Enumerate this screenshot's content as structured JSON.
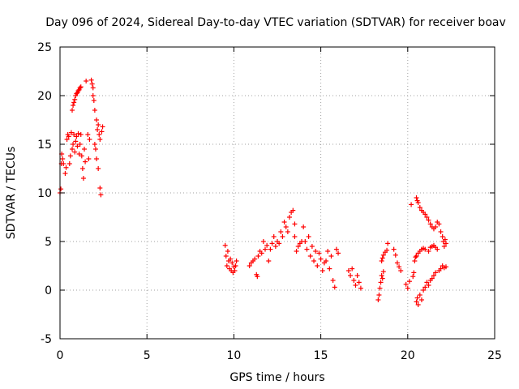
{
  "chart_data": {
    "type": "scatter",
    "title": "Day 096 of 2024, Sidereal Day-to-day VTEC variation (SDTVAR) for receiver boav",
    "xlabel": "GPS time / hours",
    "ylabel": "SDTVAR / TECUs",
    "xlim": [
      0,
      25
    ],
    "ylim": [
      -5,
      25
    ],
    "xticks": [
      "0",
      "5",
      "10",
      "15",
      "20",
      "25"
    ],
    "yticks": [
      "-5",
      "0",
      "5",
      "10",
      "15",
      "20",
      "25"
    ],
    "grid": true,
    "marker": "+",
    "color": "#ff0000",
    "series": [
      {
        "name": "SDTVAR",
        "points": [
          [
            0.0,
            10.0
          ],
          [
            0.05,
            10.4
          ],
          [
            0.08,
            13.0
          ],
          [
            0.1,
            14.0
          ],
          [
            0.15,
            13.5
          ],
          [
            0.2,
            13.0
          ],
          [
            0.3,
            12.0
          ],
          [
            0.35,
            12.6
          ],
          [
            0.4,
            15.5
          ],
          [
            0.45,
            16.0
          ],
          [
            0.5,
            15.8
          ],
          [
            0.55,
            13.0
          ],
          [
            0.6,
            13.8
          ],
          [
            0.65,
            16.2
          ],
          [
            0.7,
            14.5
          ],
          [
            0.75,
            15.0
          ],
          [
            0.8,
            16.0
          ],
          [
            0.85,
            14.2
          ],
          [
            0.9,
            15.3
          ],
          [
            0.95,
            15.8
          ],
          [
            1.0,
            14.8
          ],
          [
            1.05,
            16.1
          ],
          [
            1.1,
            14.0
          ],
          [
            1.15,
            15.0
          ],
          [
            1.2,
            16.0
          ],
          [
            1.25,
            13.8
          ],
          [
            1.3,
            12.5
          ],
          [
            1.35,
            11.5
          ],
          [
            1.4,
            14.5
          ],
          [
            1.45,
            13.2
          ],
          [
            0.7,
            18.5
          ],
          [
            0.75,
            19.0
          ],
          [
            0.8,
            19.3
          ],
          [
            0.85,
            19.6
          ],
          [
            0.9,
            20.0
          ],
          [
            0.95,
            20.2
          ],
          [
            1.0,
            20.3
          ],
          [
            1.05,
            20.5
          ],
          [
            1.1,
            20.6
          ],
          [
            1.15,
            20.8
          ],
          [
            1.2,
            20.9
          ],
          [
            1.5,
            21.5
          ],
          [
            1.6,
            16.0
          ],
          [
            1.65,
            13.5
          ],
          [
            1.7,
            15.5
          ],
          [
            1.8,
            21.6
          ],
          [
            1.85,
            21.2
          ],
          [
            1.9,
            20.8
          ],
          [
            1.9,
            20.0
          ],
          [
            1.95,
            19.5
          ],
          [
            2.0,
            18.5
          ],
          [
            2.0,
            15.0
          ],
          [
            2.05,
            14.5
          ],
          [
            2.1,
            17.5
          ],
          [
            2.1,
            13.5
          ],
          [
            2.15,
            16.5
          ],
          [
            2.2,
            12.5
          ],
          [
            2.2,
            17.0
          ],
          [
            2.25,
            16.0
          ],
          [
            2.3,
            10.5
          ],
          [
            2.3,
            15.5
          ],
          [
            2.35,
            9.8
          ],
          [
            2.4,
            16.3
          ],
          [
            2.45,
            16.8
          ],
          [
            9.5,
            4.6
          ],
          [
            9.55,
            3.5
          ],
          [
            9.6,
            2.5
          ],
          [
            9.65,
            4.0
          ],
          [
            9.7,
            3.0
          ],
          [
            9.75,
            2.2
          ],
          [
            9.8,
            3.2
          ],
          [
            9.85,
            2.0
          ],
          [
            9.9,
            2.8
          ],
          [
            9.95,
            1.8
          ],
          [
            10.0,
            2.4
          ],
          [
            10.05,
            2.0
          ],
          [
            10.1,
            2.5
          ],
          [
            10.15,
            3.0
          ],
          [
            10.9,
            2.5
          ],
          [
            11.0,
            2.8
          ],
          [
            11.1,
            3.0
          ],
          [
            11.2,
            3.2
          ],
          [
            11.3,
            1.6
          ],
          [
            11.35,
            1.4
          ],
          [
            11.4,
            3.5
          ],
          [
            11.5,
            4.0
          ],
          [
            11.6,
            3.8
          ],
          [
            11.7,
            5.0
          ],
          [
            11.8,
            4.2
          ],
          [
            11.9,
            4.6
          ],
          [
            12.0,
            3.0
          ],
          [
            12.1,
            4.2
          ],
          [
            12.2,
            4.8
          ],
          [
            12.3,
            5.5
          ],
          [
            12.4,
            4.5
          ],
          [
            12.5,
            5.0
          ],
          [
            12.6,
            4.8
          ],
          [
            12.7,
            6.0
          ],
          [
            12.8,
            5.5
          ],
          [
            12.9,
            7.0
          ],
          [
            13.0,
            6.5
          ],
          [
            13.1,
            6.0
          ],
          [
            13.2,
            7.5
          ],
          [
            13.3,
            8.0
          ],
          [
            13.4,
            8.2
          ],
          [
            13.5,
            6.8
          ],
          [
            13.5,
            5.5
          ],
          [
            13.6,
            4.0
          ],
          [
            13.7,
            4.5
          ],
          [
            13.8,
            4.8
          ],
          [
            13.9,
            5.0
          ],
          [
            14.0,
            6.5
          ],
          [
            14.1,
            5.0
          ],
          [
            14.2,
            4.2
          ],
          [
            14.3,
            5.5
          ],
          [
            14.4,
            3.5
          ],
          [
            14.5,
            4.5
          ],
          [
            14.6,
            3.0
          ],
          [
            14.7,
            4.0
          ],
          [
            14.8,
            2.5
          ],
          [
            14.9,
            3.8
          ],
          [
            15.0,
            3.2
          ],
          [
            15.1,
            2.0
          ],
          [
            15.2,
            2.8
          ],
          [
            15.3,
            3.0
          ],
          [
            15.4,
            4.0
          ],
          [
            15.5,
            2.2
          ],
          [
            15.6,
            3.5
          ],
          [
            15.7,
            1.0
          ],
          [
            15.8,
            0.3
          ],
          [
            15.9,
            4.2
          ],
          [
            16.0,
            3.8
          ],
          [
            16.6,
            2.0
          ],
          [
            16.7,
            1.5
          ],
          [
            16.8,
            2.2
          ],
          [
            16.9,
            1.0
          ],
          [
            17.0,
            0.5
          ],
          [
            17.1,
            1.5
          ],
          [
            17.2,
            0.8
          ],
          [
            17.3,
            0.2
          ],
          [
            18.3,
            -1.0
          ],
          [
            18.35,
            -0.5
          ],
          [
            18.4,
            0.2
          ],
          [
            18.45,
            0.8
          ],
          [
            18.5,
            1.5
          ],
          [
            18.55,
            1.2
          ],
          [
            18.6,
            1.9
          ],
          [
            18.5,
            3.0
          ],
          [
            18.55,
            3.3
          ],
          [
            18.6,
            3.6
          ],
          [
            18.7,
            3.9
          ],
          [
            18.8,
            4.1
          ],
          [
            18.85,
            4.8
          ],
          [
            19.2,
            4.2
          ],
          [
            19.3,
            3.6
          ],
          [
            19.4,
            2.8
          ],
          [
            19.5,
            2.4
          ],
          [
            19.6,
            2.0
          ],
          [
            19.9,
            0.6
          ],
          [
            20.0,
            0.2
          ],
          [
            20.1,
            0.9
          ],
          [
            20.2,
            8.8
          ],
          [
            20.3,
            1.4
          ],
          [
            20.35,
            1.8
          ],
          [
            20.4,
            3.0
          ],
          [
            20.45,
            3.4
          ],
          [
            20.5,
            -1.2
          ],
          [
            20.55,
            -0.8
          ],
          [
            20.6,
            -1.5
          ],
          [
            20.7,
            -0.5
          ],
          [
            20.8,
            -1.0
          ],
          [
            20.9,
            0.0
          ],
          [
            21.0,
            0.3
          ],
          [
            21.1,
            0.8
          ],
          [
            21.2,
            0.5
          ],
          [
            21.3,
            1.0
          ],
          [
            21.4,
            1.2
          ],
          [
            21.5,
            1.5
          ],
          [
            21.6,
            1.8
          ],
          [
            20.5,
            3.5
          ],
          [
            20.6,
            3.8
          ],
          [
            20.7,
            4.0
          ],
          [
            20.8,
            4.2
          ],
          [
            20.9,
            4.3
          ],
          [
            21.0,
            4.2
          ],
          [
            21.2,
            4.0
          ],
          [
            21.3,
            4.4
          ],
          [
            21.4,
            4.5
          ],
          [
            21.5,
            4.6
          ],
          [
            21.6,
            4.4
          ],
          [
            21.7,
            4.2
          ],
          [
            20.5,
            9.5
          ],
          [
            20.55,
            9.2
          ],
          [
            20.6,
            9.0
          ],
          [
            20.7,
            8.5
          ],
          [
            20.8,
            8.2
          ],
          [
            20.9,
            8.0
          ],
          [
            21.0,
            7.8
          ],
          [
            21.1,
            7.5
          ],
          [
            21.2,
            7.2
          ],
          [
            21.3,
            6.8
          ],
          [
            21.4,
            6.5
          ],
          [
            21.5,
            6.3
          ],
          [
            21.6,
            6.5
          ],
          [
            21.7,
            7.0
          ],
          [
            21.8,
            6.8
          ],
          [
            21.9,
            6.0
          ],
          [
            22.0,
            5.5
          ],
          [
            22.05,
            5.0
          ],
          [
            22.1,
            4.5
          ],
          [
            22.15,
            5.2
          ],
          [
            22.2,
            4.8
          ],
          [
            21.8,
            2.0
          ],
          [
            21.9,
            2.2
          ],
          [
            22.0,
            2.5
          ],
          [
            22.1,
            2.3
          ],
          [
            22.2,
            2.4
          ]
        ]
      }
    ]
  }
}
